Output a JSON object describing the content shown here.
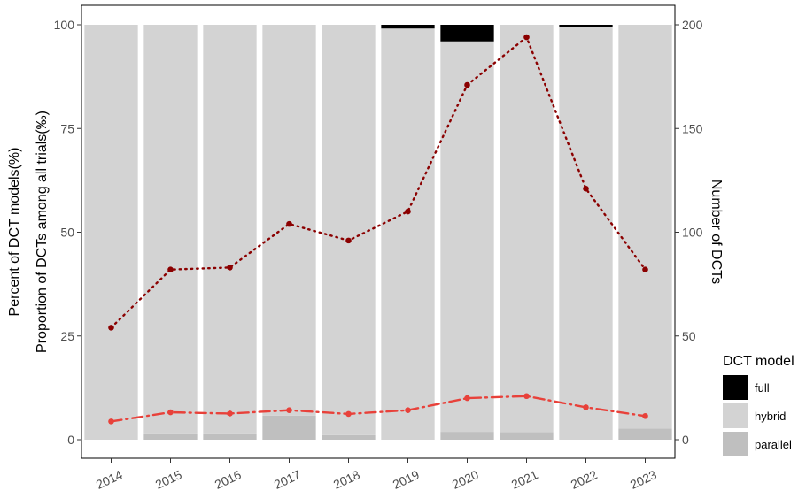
{
  "chart_data": {
    "type": "bar",
    "categories": [
      "2014",
      "2015",
      "2016",
      "2017",
      "2018",
      "2019",
      "2020",
      "2021",
      "2022",
      "2023"
    ],
    "series": [
      {
        "name": "full",
        "values": [
          0,
          0,
          0,
          0,
          0,
          0.9,
          4.0,
          0,
          0.5,
          0
        ],
        "color": "#000000"
      },
      {
        "name": "hybrid",
        "values": [
          100,
          98.7,
          98.7,
          94.2,
          98.9,
          99.1,
          94.1,
          98.2,
          99.5,
          97.3
        ],
        "color": "#d3d3d3"
      },
      {
        "name": "parallel",
        "values": [
          0,
          1.3,
          1.3,
          5.8,
          1.1,
          0,
          1.9,
          1.8,
          0,
          2.7
        ],
        "color": "#bfbfbf"
      }
    ],
    "lines": [
      {
        "axis": "right",
        "style": "dotted",
        "color": "#8b0000",
        "values": [
          54,
          82,
          83,
          104,
          96,
          110,
          171,
          194,
          121,
          82
        ]
      },
      {
        "axis": "left",
        "style": "dashdot",
        "color": "#e8413a",
        "values": [
          4.4,
          6.6,
          6.3,
          7.1,
          6.2,
          7.1,
          10.0,
          10.5,
          7.8,
          5.7
        ]
      }
    ],
    "ylabel": "Percent of DCT models(%)",
    "ylabel2": "Proportion of DCTs among all trials(‰)",
    "y2label": "Number of DCTs",
    "xlabel": "",
    "ylim": [
      0,
      100
    ],
    "y2lim": [
      0,
      200
    ],
    "yticks": [
      "0",
      "25",
      "50",
      "75",
      "100"
    ],
    "y2ticks": [
      "0",
      "50",
      "100",
      "150",
      "200"
    ],
    "legend": {
      "title": "DCT model",
      "entries": [
        "full",
        "hybrid",
        "parallel"
      ],
      "position": "right"
    },
    "grid": false
  }
}
